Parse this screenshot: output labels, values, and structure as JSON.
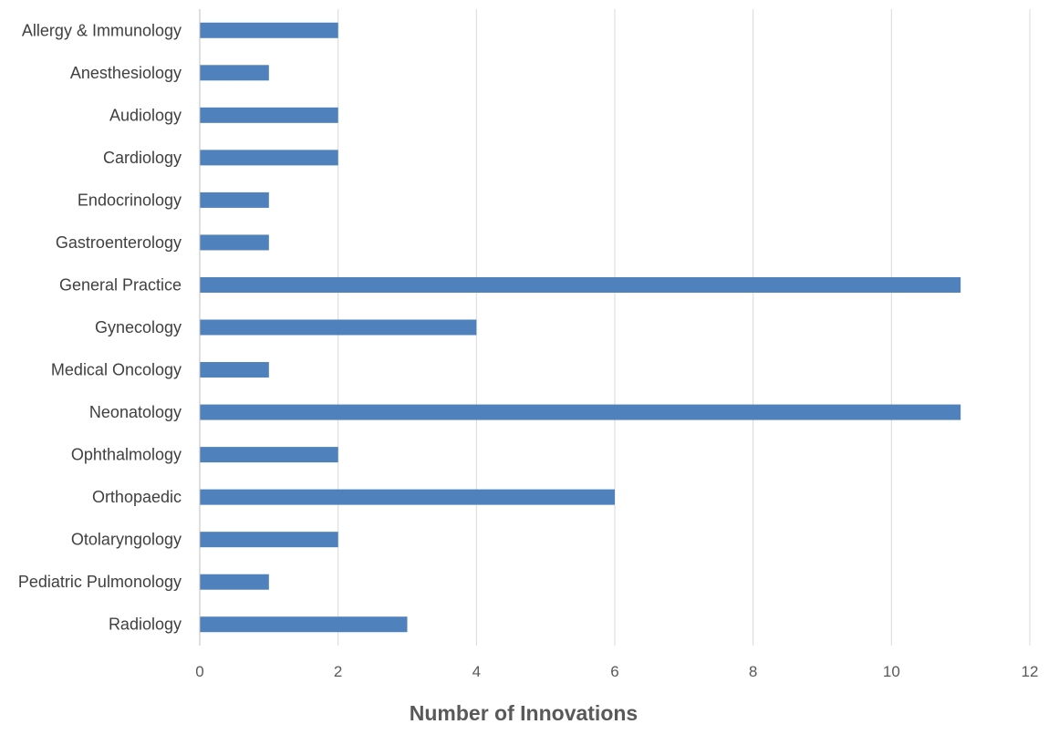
{
  "chart_data": {
    "type": "bar",
    "orientation": "horizontal",
    "categories": [
      "Allergy & Immunology",
      "Anesthesiology",
      "Audiology",
      "Cardiology",
      "Endocrinology",
      "Gastroenterology",
      "General Practice",
      "Gynecology",
      "Medical Oncology",
      "Neonatology",
      "Ophthalmology",
      "Orthopaedic",
      "Otolaryngology",
      "Pediatric Pulmonology",
      "Radiology"
    ],
    "values": [
      2,
      1,
      2,
      2,
      1,
      1,
      11,
      4,
      1,
      11,
      2,
      6,
      2,
      1,
      3
    ],
    "xlabel": "Number of Innovations",
    "ylabel": "",
    "title": "",
    "xlim": [
      0,
      12
    ],
    "xticks": [
      "0",
      "2",
      "4",
      "6",
      "8",
      "10",
      "12"
    ],
    "grid": "vertical",
    "legend": "none",
    "bar_color": "#4f81bd"
  }
}
